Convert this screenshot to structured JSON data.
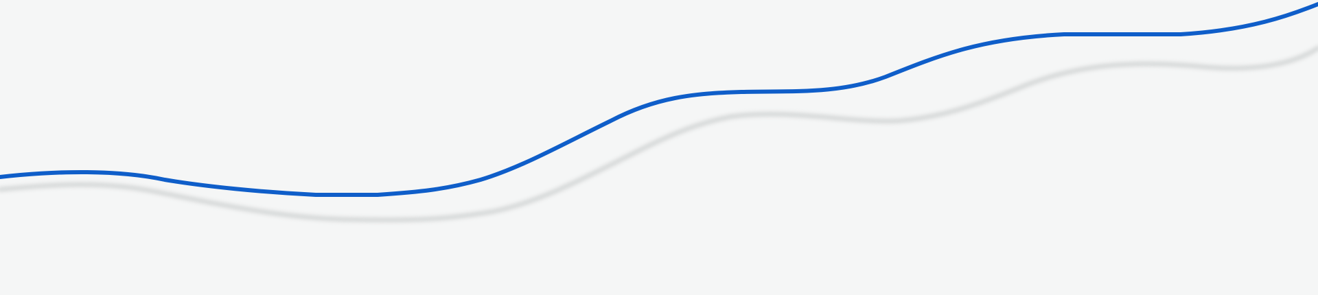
{
  "colors": {
    "background": "#f5f6f6",
    "accent_line": "#0f5ec9",
    "shadow_line": "#c9cccc"
  },
  "decorations": {
    "primary_wave": "blue-wave-line",
    "shadow_wave": "soft-gray-shadow-line"
  }
}
